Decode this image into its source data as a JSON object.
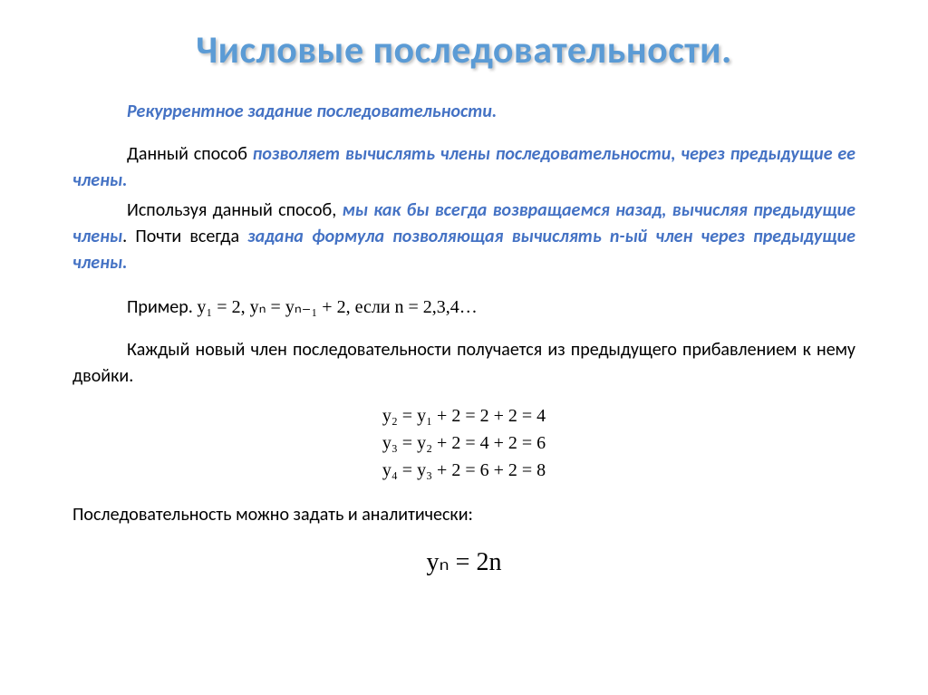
{
  "title": "Числовые последовательности.",
  "subtitle": "Рекуррентное задание последовательности.",
  "p1_a": "Данный способ ",
  "p1_b": "позволяет вычислять члены последовательности, через предыдущие ее члены.",
  "p2_a": "Используя данный способ, ",
  "p2_b": "мы как бы всегда возвращаемся назад, вычисляя предыдущие члены",
  "p2_c": ".   Почти всегда ",
  "p2_d": "задана формула позволяющая вычислять n-ый член через предыдущие члены.",
  "example_label": "Пример.  ",
  "example_formula": "y₁ = 2, yₙ = yₙ₋₁ + 2, если n = 2,3,4…",
  "p3": "Каждый новый член последовательности получается из предыдущего прибавлением к нему двойки.",
  "eq1": "y₂ = y₁ + 2 = 2 + 2 = 4",
  "eq2": "y₃ = y₂ + 2 = 4 + 2 = 6",
  "eq3": "y₄ = y₃ + 2 = 6 + 2 = 8",
  "p4": "Последовательность можно задать и аналитически:",
  "final": "yₙ = 2n",
  "colors": {
    "title": "#5b9bd5",
    "highlight": "#4472c4",
    "text": "#000000",
    "background": "#ffffff"
  },
  "typography": {
    "title_fontsize": 42,
    "body_fontsize": 20,
    "final_fontsize": 28,
    "title_weight": "bold",
    "highlight_style": "bold italic"
  }
}
